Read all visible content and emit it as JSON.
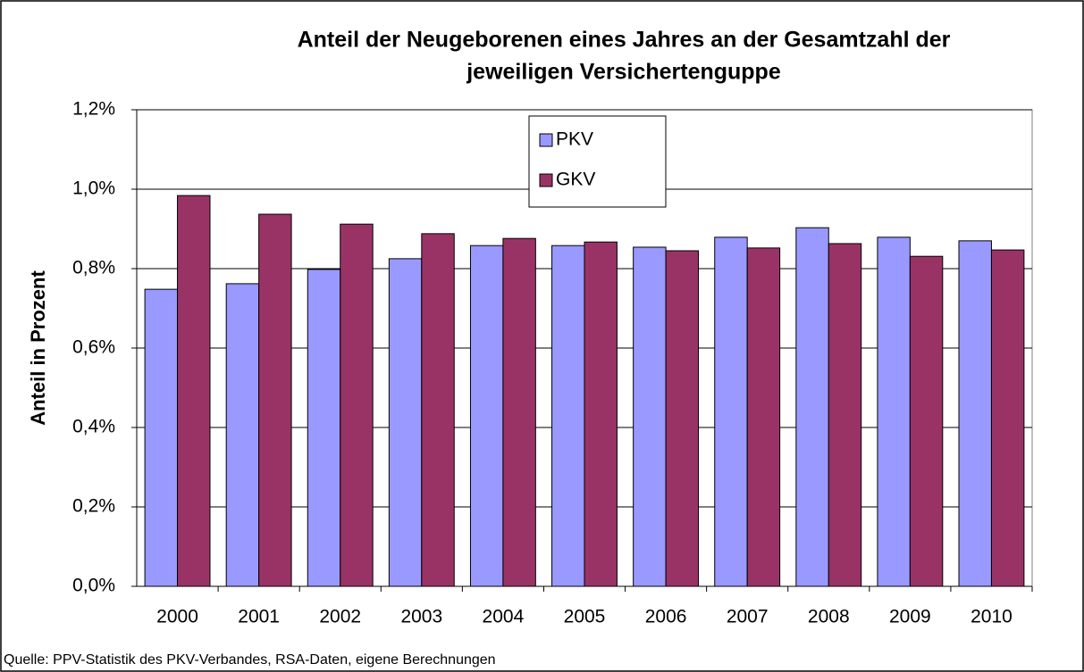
{
  "chart_data": {
    "type": "bar",
    "title": [
      "Anteil der Neugeborenen eines Jahres an der Gesamtzahl der",
      "jeweiligen Versichertenguppe"
    ],
    "y_label": "Anteil in Prozent",
    "source": "Quelle: PPV-Statistik des PKV-Verbandes, RSA-Daten, eigene Berechnungen",
    "categories": [
      "2000",
      "2001",
      "2002",
      "2003",
      "2004",
      "2005",
      "2006",
      "2007",
      "2008",
      "2009",
      "2010"
    ],
    "series": [
      {
        "name": "PKV",
        "color": "#9999ff",
        "values": [
          0.748,
          0.762,
          0.798,
          0.825,
          0.858,
          0.858,
          0.854,
          0.879,
          0.903,
          0.879,
          0.87
        ]
      },
      {
        "name": "GKV",
        "color": "#993366",
        "values": [
          0.984,
          0.937,
          0.912,
          0.888,
          0.876,
          0.867,
          0.845,
          0.852,
          0.863,
          0.831,
          0.847
        ]
      }
    ],
    "ylim": [
      0,
      1.2
    ],
    "yticks": [
      {
        "value": 0,
        "label": "0,0%"
      },
      {
        "value": 0.2,
        "label": "0,2%"
      },
      {
        "value": 0.4,
        "label": "0,4%"
      },
      {
        "value": 0.6,
        "label": "0,6%"
      },
      {
        "value": 0.8,
        "label": "0,8%"
      },
      {
        "value": 1.0,
        "label": "1,0%"
      },
      {
        "value": 1.2,
        "label": "1,2%"
      }
    ],
    "grid": true,
    "legend": "top"
  }
}
